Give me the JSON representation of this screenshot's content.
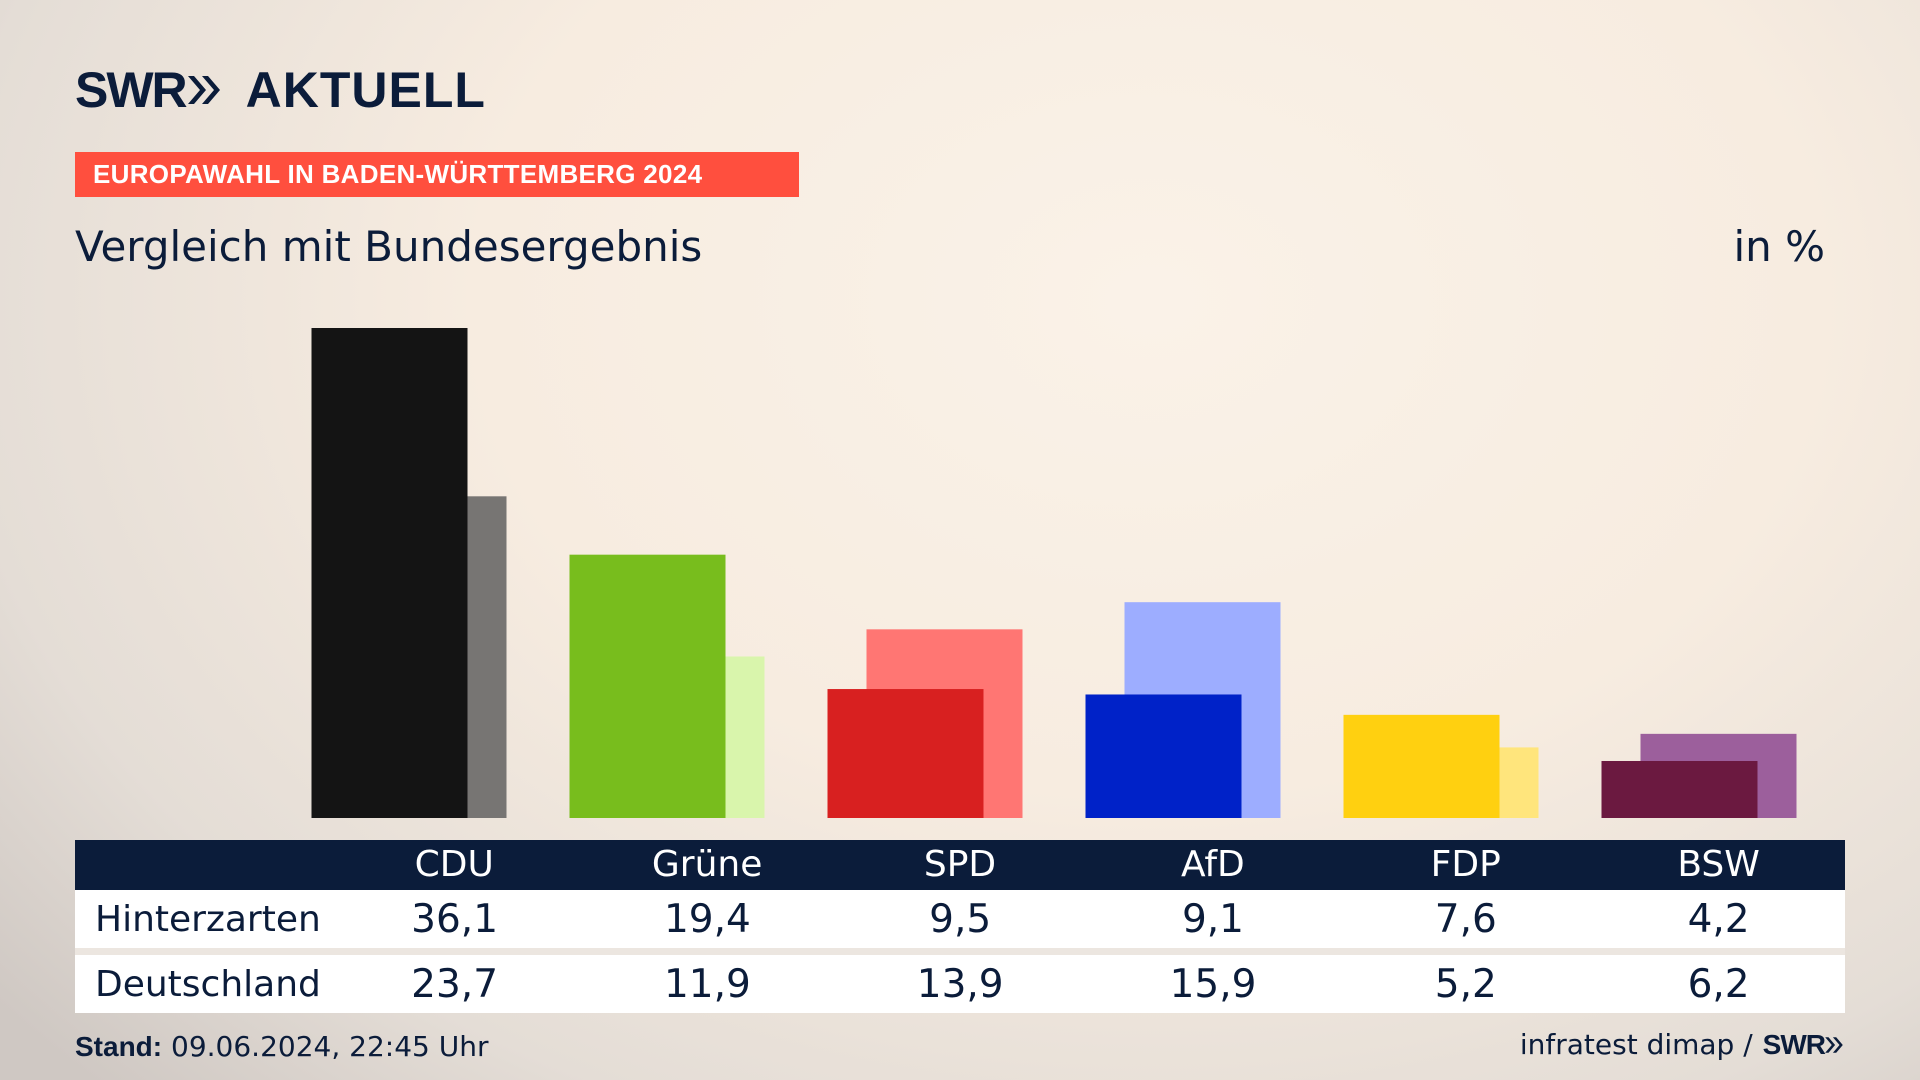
{
  "brand": {
    "logo_text": "SWR",
    "logo_suffix": "AKTUELL",
    "color": "#0b1c3a"
  },
  "banner": {
    "text": "EUROPAWAHL IN BADEN-WÜRTTEMBERG 2024",
    "color": "#ff4f3e"
  },
  "subtitle": "Vergleich mit Bundesergebnis",
  "unit": "in %",
  "rows": {
    "local_label": "Hinterzarten",
    "national_label": "Deutschland"
  },
  "footer": {
    "stand_label": "Stand:",
    "stand_value": "09.06.2024, 22:45 Uhr",
    "source": "infratest dimap /",
    "source_logo": "SWR"
  },
  "chart_data": {
    "type": "bar",
    "categories": [
      "CDU",
      "Grüne",
      "SPD",
      "AfD",
      "FDP",
      "BSW"
    ],
    "series": [
      {
        "name": "Hinterzarten",
        "values": [
          36.1,
          19.4,
          9.5,
          9.1,
          7.6,
          4.2
        ]
      },
      {
        "name": "Deutschland",
        "values": [
          23.7,
          11.9,
          13.9,
          15.9,
          5.2,
          6.2
        ]
      }
    ],
    "ylim": [
      0,
      36.1
    ],
    "colors": {
      "local": [
        "#141414",
        "#78bd1d",
        "#d82020",
        "#0022c8",
        "#ffd010",
        "#6b1940"
      ],
      "national": [
        "#777573",
        "#d9f5ac",
        "#ff7673",
        "#9dadff",
        "#ffe57c",
        "#9c5f9c"
      ]
    },
    "value_labels": {
      "local": [
        "36,1",
        "19,4",
        "9,5",
        "9,1",
        "7,6",
        "4,2"
      ],
      "national": [
        "23,7",
        "11,9",
        "13,9",
        "15,9",
        "5,2",
        "6,2"
      ]
    },
    "grid": false,
    "legend": "none"
  }
}
